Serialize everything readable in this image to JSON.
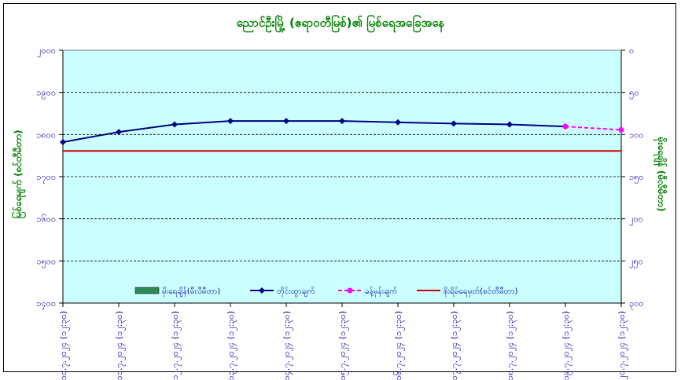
{
  "chart_data": {
    "type": "line",
    "title": "ညောင်ဦးမြို့ (ဧရာဝတီမြစ်)၏ မြစ်ရေအခြေအနေ",
    "ylabel_left": "မြစ်ရေမျက် (စင်တီမီတာ)",
    "ylabel_right": "မိုးရေချိန် (မီလီမီတာ)",
    "x_ticks": [
      "၁၀.၇.၂၀၂၄ (၁၂:၃၀)",
      "၁၁.၇.၂၀၂၄ (၁၂:၃၀)",
      "၁၂.၇.၂၀၂၄ (၁၂:၃၀)",
      "၁၃.၇.၂၀၂၄ (၁၂:၃၀)",
      "၁၄.၇.၂၀၂၄ (၁၂:၃၀)",
      "၁၅.၇.၂၀၂၄ (၁၂:၃၀)",
      "၁၆.၇.၂၀၂၄ (၁၂:၃၀)",
      "၁၇.၇.၂၀၂၄ (၁၂:၃၀)",
      "၁၈.၇.၂၀၂၄ (၁၂:၃၀)",
      "၁၉.၇.၂၀၂၄ (၁၂:၃၀)",
      "၂၀.၇.၂၀၂၄ (၁၂:၃၀)"
    ],
    "y_left_ticks": [
      "၁၄၀၀",
      "၁၅၀၀",
      "၁၆၀၀",
      "၁၇၀၀",
      "၁၈၀၀",
      "၁၉၀၀",
      "၂၀၀၀"
    ],
    "y_left_values": [
      1400,
      1500,
      1600,
      1700,
      1800,
      1900,
      2000
    ],
    "ylim_left": [
      1400,
      2000
    ],
    "y_right_ticks": [
      "၀",
      "၅၀",
      "၁၀၀",
      "၁၅၀",
      "၂၀၀",
      "၂၅၀",
      "၃၀၀"
    ],
    "ylim_right": [
      0,
      300
    ],
    "grid": true,
    "legend_position": "bottom",
    "series": [
      {
        "name": "မိုးရေချိန်(မီလီမီတာ)",
        "kind": "bar",
        "values": [],
        "color": "#2e8b57"
      },
      {
        "name": "တိုင်းထွာချက်",
        "kind": "line",
        "x_index": [
          0,
          1,
          2,
          3,
          4,
          5,
          6,
          7,
          8,
          9
        ],
        "values": [
          1782,
          1806,
          1824,
          1832,
          1832,
          1832,
          1829,
          1826,
          1824,
          1819
        ],
        "color": "#000080",
        "marker": "diamond"
      },
      {
        "name": "ခန့်မှန်းချက်",
        "kind": "line-dashed",
        "x_index": [
          9,
          10
        ],
        "values": [
          1819,
          1811
        ],
        "color": "#ff00ff",
        "marker": "circle"
      },
      {
        "name": "စိုးရိမ်ရေမှတ်(စင်တီမီတာ)",
        "kind": "hline",
        "value": 1761,
        "color": "#cc0000"
      }
    ]
  }
}
